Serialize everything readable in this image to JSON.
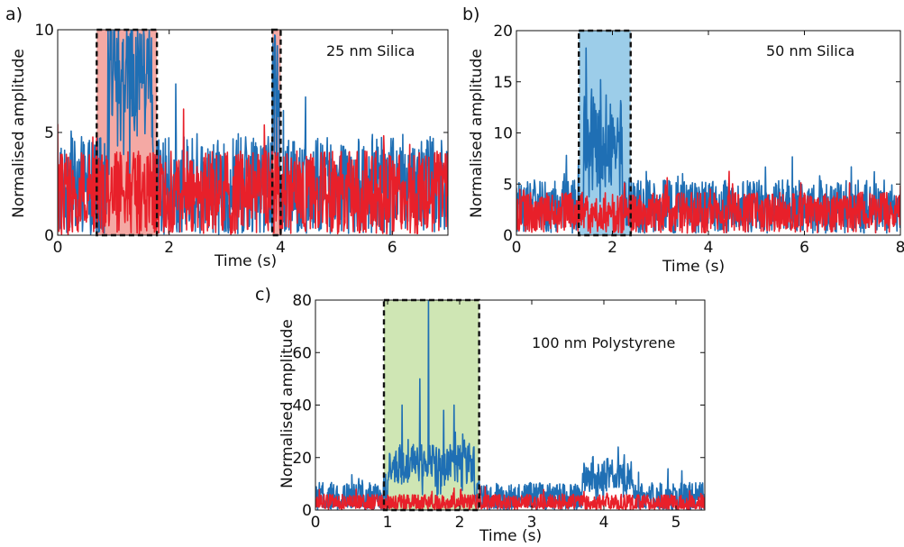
{
  "chart_data": [
    {
      "type": "line",
      "panel_label": "a)",
      "annotation": "25 nm Silica",
      "xlabel": "Time (s)",
      "ylabel": "Normalised amplitude",
      "xlim": [
        0,
        7
      ],
      "ylim": [
        0,
        10
      ],
      "xticks": [
        0,
        2,
        4,
        6
      ],
      "yticks": [
        0,
        5,
        10
      ],
      "highlight_color": "#f4a9a4",
      "highlights": [
        [
          0.7,
          1.78
        ],
        [
          3.85,
          4.0
        ]
      ],
      "series_colors": {
        "blue": "#1f6fb4",
        "red": "#e8202a"
      },
      "profile": {
        "blue": {
          "base": 2.4,
          "noise": 2.4,
          "bumps": [
            [
              0.9,
              1.7,
              5.5
            ],
            [
              3.85,
              3.98,
              5.0
            ]
          ],
          "spikes": [
            [
              1.3,
              9.8
            ],
            [
              1.47,
              9.8
            ],
            [
              3.9,
              9.7
            ]
          ]
        },
        "red": {
          "base": 2.0,
          "noise": 2.1,
          "bumps": []
        }
      }
    },
    {
      "type": "line",
      "panel_label": "b)",
      "annotation": "50 nm Silica",
      "xlabel": "Time (s)",
      "ylabel": "Normalised amplitude",
      "xlim": [
        0,
        8
      ],
      "ylim": [
        0,
        20
      ],
      "xticks": [
        0,
        2,
        4,
        6,
        8
      ],
      "yticks": [
        0,
        5,
        10,
        15,
        20
      ],
      "highlight_color": "#9ccde9",
      "highlights": [
        [
          1.3,
          2.38
        ]
      ],
      "series_colors": {
        "blue": "#1f6fb4",
        "red": "#e8202a"
      },
      "profile": {
        "blue": {
          "base": 2.8,
          "noise": 2.6,
          "bumps": [
            [
              1.4,
              2.2,
              7.0
            ]
          ],
          "spikes": [
            [
              1.45,
              18.3
            ],
            [
              1.75,
              15.2
            ],
            [
              1.6,
              13.5
            ]
          ]
        },
        "red": {
          "base": 2.2,
          "noise": 2.0,
          "bumps": []
        }
      }
    },
    {
      "type": "line",
      "panel_label": "c)",
      "annotation": "100 nm Polystyrene",
      "xlabel": "Time (s)",
      "ylabel": "Normalised amplitude",
      "xlim": [
        0,
        5.4
      ],
      "ylim": [
        0,
        80
      ],
      "xticks": [
        0,
        1,
        2,
        3,
        4,
        5
      ],
      "yticks": [
        0,
        20,
        40,
        60,
        80
      ],
      "highlight_color": "#cfe6b4",
      "highlights": [
        [
          0.95,
          2.27
        ]
      ],
      "series_colors": {
        "blue": "#1f6fb4",
        "red": "#e8202a"
      },
      "profile": {
        "blue": {
          "base": 4.5,
          "noise": 6.0,
          "bumps": [
            [
              1.0,
              2.2,
              14.0
            ],
            [
              3.7,
              4.4,
              8.0
            ]
          ],
          "spikes": [
            [
              1.57,
              80
            ],
            [
              1.2,
              40
            ],
            [
              1.45,
              50
            ],
            [
              1.78,
              38
            ],
            [
              1.92,
              40
            ],
            [
              4.2,
              24
            ]
          ]
        },
        "red": {
          "base": 2.5,
          "noise": 3.5,
          "bumps": []
        }
      }
    }
  ]
}
